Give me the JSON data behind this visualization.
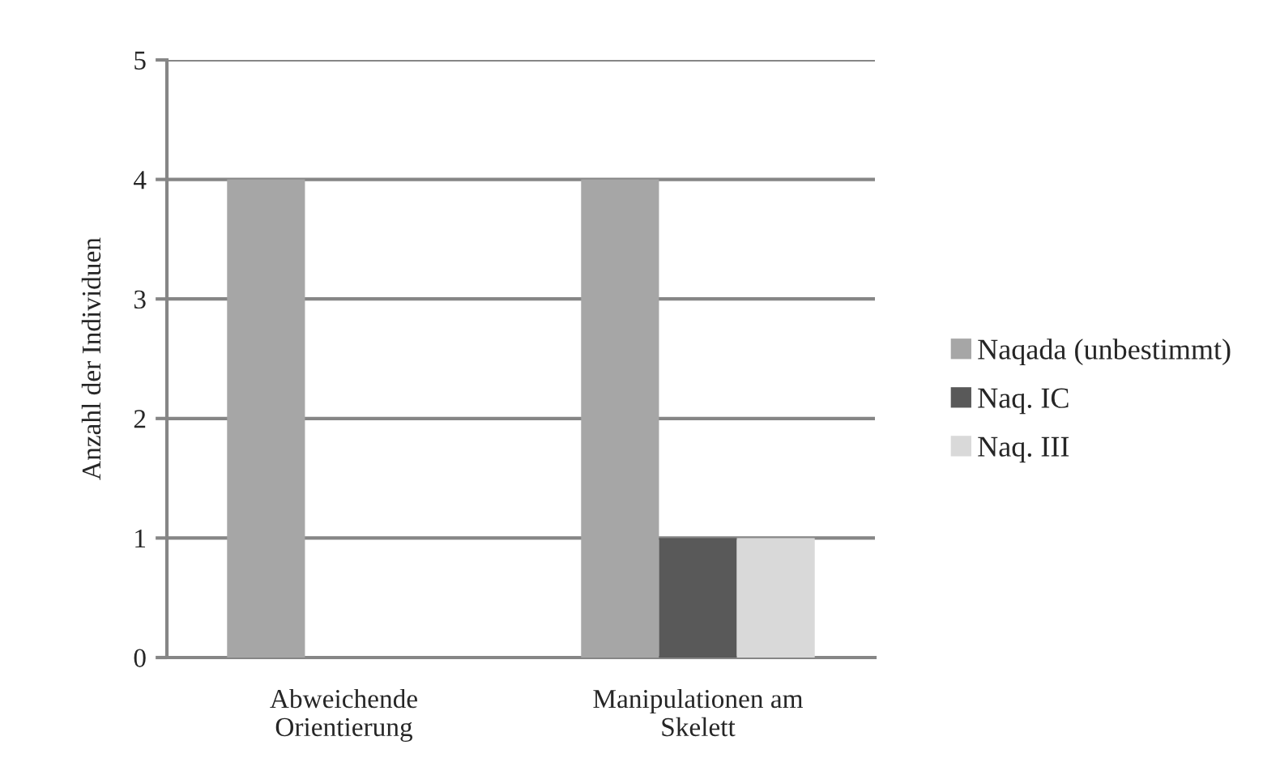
{
  "chart_data": {
    "type": "bar",
    "ylabel": "Anzahl der Individuen",
    "categories": [
      "Abweichende\nOrientierung",
      "Manipulationen am\nSkelett"
    ],
    "series": [
      {
        "name": "Naqada (unbestimmt)",
        "color": "#a6a6a6",
        "values": [
          4,
          4
        ]
      },
      {
        "name": "Naq. IC",
        "color": "#595959",
        "values": [
          null,
          1
        ]
      },
      {
        "name": "Naq. III",
        "color": "#d9d9d9",
        "values": [
          null,
          1
        ]
      }
    ],
    "ylim": [
      0,
      5
    ],
    "yticks": [
      0,
      1,
      2,
      3,
      4,
      5
    ],
    "grid": "y",
    "legend": "right"
  }
}
